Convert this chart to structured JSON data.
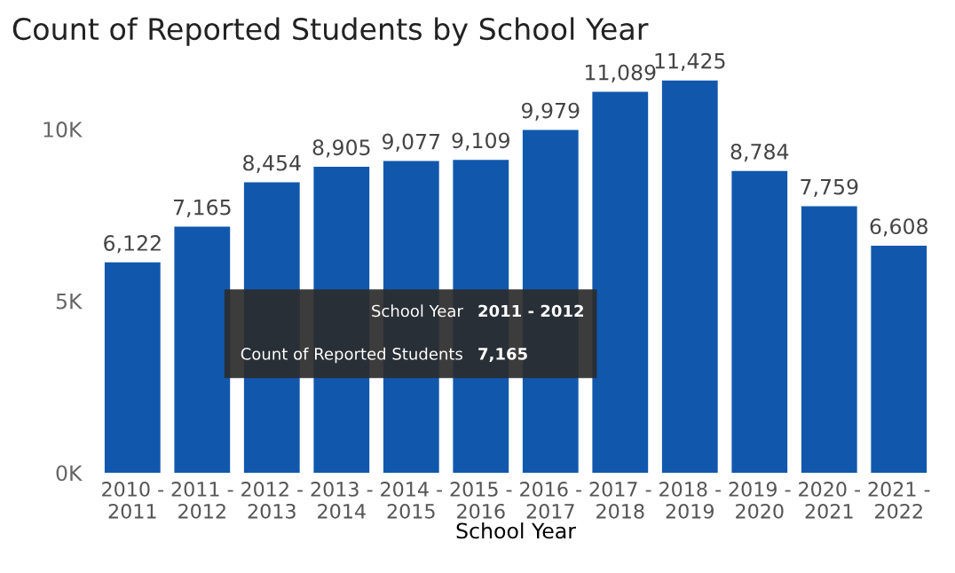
{
  "chart_data": {
    "type": "bar",
    "title": "Count of Reported Students by School Year",
    "xlabel": "School Year",
    "categories": [
      "2010 -\n2011",
      "2011 -\n2012",
      "2012 -\n2013",
      "2013 -\n2014",
      "2014 -\n2015",
      "2015 -\n2016",
      "2016 -\n2017",
      "2017 -\n2018",
      "2018 -\n2019",
      "2019 -\n2020",
      "2020 -\n2021",
      "2021 -\n2022"
    ],
    "values": [
      6122,
      7165,
      8454,
      8905,
      9077,
      9109,
      9979,
      11089,
      11425,
      8784,
      7759,
      6608
    ],
    "value_labels": [
      "6,122",
      "7,165",
      "8,454",
      "8,905",
      "9,077",
      "9,109",
      "9,979",
      "11,089",
      "11,425",
      "8,784",
      "7,759",
      "6,608"
    ],
    "color": "#1158ad",
    "ylim": [
      0,
      11425
    ],
    "yticks": [
      {
        "value": 0,
        "label": "0K"
      },
      {
        "value": 5000,
        "label": "5K"
      },
      {
        "value": 10000,
        "label": "10K"
      }
    ],
    "grid": false,
    "annotations": [
      "School Year",
      "2011 - 2012",
      "Count of Reported Students",
      "7,165"
    ]
  }
}
